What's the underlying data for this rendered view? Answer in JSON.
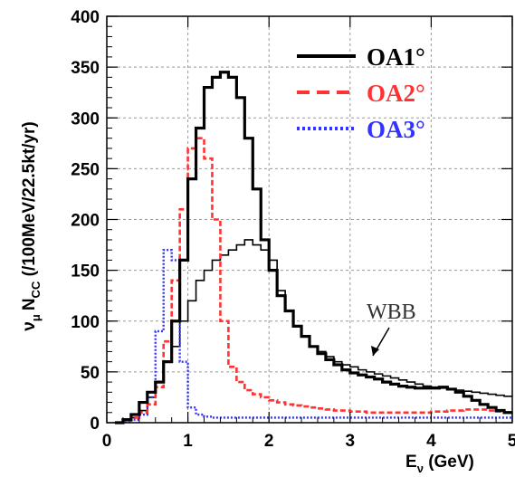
{
  "chart_data": {
    "type": "line",
    "title": "",
    "xlabel": "E",
    "xlabel_sub": "ν",
    "xlabel_unit": " (GeV)",
    "ylabel": "N",
    "ylabel_prefix": "ν",
    "ylabel_prefix_sub": "μ",
    "ylabel_sub": "CC",
    "ylabel_unit": " (/100MeV/22.5kt/yr)",
    "xlim": [
      0,
      5
    ],
    "ylim": [
      0,
      400
    ],
    "xticks": [
      0,
      1,
      2,
      3,
      4,
      5
    ],
    "yticks": [
      0,
      50,
      100,
      150,
      200,
      250,
      300,
      350,
      400
    ],
    "grid": true,
    "legend_position": "top-right",
    "bin_width": 0.1,
    "series": [
      {
        "name": "OA1°",
        "color": "#000000",
        "style": "solid",
        "bin_edges_start": 0.1,
        "values": [
          0,
          3,
          8,
          20,
          30,
          40,
          60,
          100,
          160,
          240,
          290,
          330,
          340,
          345,
          340,
          320,
          280,
          230,
          180,
          150,
          125,
          110,
          95,
          85,
          75,
          68,
          62,
          57,
          52,
          49,
          47,
          45,
          43,
          40,
          38,
          36,
          35,
          34,
          34,
          34,
          35,
          33,
          30,
          26,
          22,
          18,
          15,
          12,
          10
        ]
      },
      {
        "name": "OA2°",
        "color": "#ff3333",
        "style": "dashed",
        "bin_edges_start": 0.1,
        "values": [
          0,
          2,
          5,
          10,
          18,
          35,
          80,
          140,
          210,
          270,
          280,
          260,
          200,
          100,
          55,
          40,
          32,
          28,
          25,
          22,
          20,
          18,
          17,
          16,
          15,
          14,
          13,
          12,
          12,
          11,
          11,
          10,
          10,
          10,
          10,
          10,
          10,
          10,
          10,
          11,
          11,
          12,
          12,
          13,
          13,
          13,
          12,
          11,
          10
        ]
      },
      {
        "name": "OA3°",
        "color": "#3333ff",
        "style": "dotted",
        "bin_edges_start": 0.1,
        "values": [
          0,
          1,
          3,
          8,
          25,
          90,
          170,
          160,
          60,
          15,
          8,
          6,
          5,
          5,
          5,
          5,
          5,
          5,
          5,
          5,
          5,
          5,
          5,
          5,
          5,
          5,
          5,
          5,
          5,
          5,
          5,
          5,
          5,
          5,
          5,
          5,
          5,
          5,
          5,
          5,
          5,
          5,
          5,
          5,
          5,
          5,
          5,
          5,
          5
        ]
      },
      {
        "name": "WBB",
        "color": "#000000",
        "style": "solid-thin",
        "bin_edges_start": 0.1,
        "values": [
          0,
          2,
          5,
          12,
          25,
          40,
          60,
          75,
          100,
          120,
          140,
          150,
          160,
          165,
          170,
          175,
          180,
          175,
          170,
          160,
          130,
          110,
          95,
          85,
          75,
          70,
          65,
          60,
          57,
          55,
          52,
          50,
          48,
          46,
          44,
          42,
          40,
          38,
          36,
          35,
          34,
          33,
          32,
          31,
          30,
          29,
          28,
          27,
          26
        ]
      }
    ],
    "annotations": [
      {
        "text": "WBB",
        "x": 3.25,
        "y": 60
      }
    ]
  }
}
